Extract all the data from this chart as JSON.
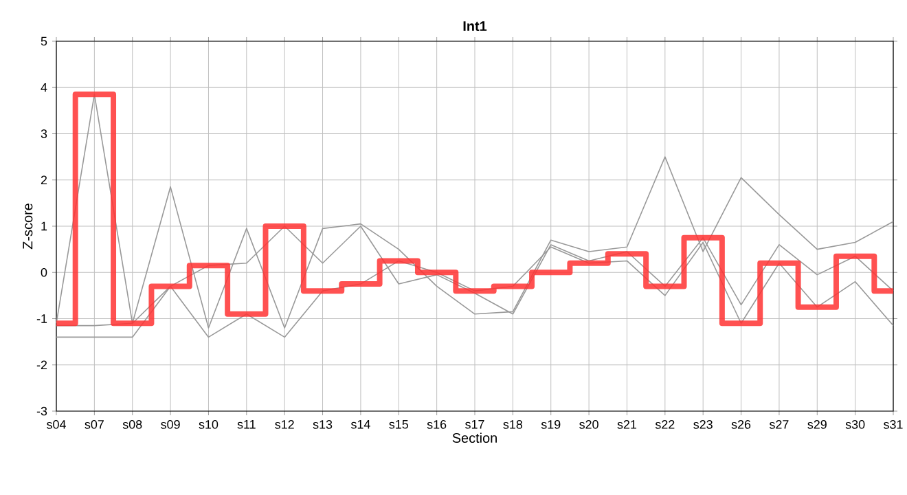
{
  "chart_data": {
    "type": "line",
    "title": "Int1",
    "xlabel": "Section",
    "ylabel": "Z-score",
    "categories": [
      "s04",
      "s07",
      "s08",
      "s09",
      "s10",
      "s11",
      "s12",
      "s13",
      "s14",
      "s15",
      "s16",
      "s17",
      "s18",
      "s19",
      "s20",
      "s21",
      "s22",
      "s23",
      "s26",
      "s27",
      "s29",
      "s30",
      "s31"
    ],
    "series": [
      {
        "color": "#999999",
        "values": [
          -1.1,
          3.85,
          -1.1,
          1.85,
          -1.2,
          0.95,
          -1.2,
          0.95,
          1.05,
          0.5,
          -0.3,
          -0.9,
          -0.85,
          0.7,
          0.45,
          0.55,
          2.5,
          0.45,
          2.05,
          1.25,
          0.5,
          0.65,
          1.1
        ]
      },
      {
        "color": "#999999",
        "values": [
          -1.15,
          -1.15,
          -1.1,
          -0.3,
          0.15,
          0.2,
          1.0,
          0.2,
          1.0,
          -0.25,
          -0.05,
          -0.45,
          -0.9,
          0.6,
          0.25,
          0.45,
          -0.3,
          0.75,
          -0.7,
          0.6,
          -0.05,
          0.35,
          -0.4
        ]
      },
      {
        "color": "#999999",
        "values": [
          -1.4,
          -1.4,
          -1.4,
          -0.3,
          -1.4,
          -0.9,
          -1.4,
          -0.4,
          -0.25,
          0.25,
          0.0,
          -0.4,
          -0.3,
          0.55,
          0.2,
          0.25,
          -0.5,
          0.65,
          -1.1,
          0.2,
          -0.75,
          -0.2,
          -1.15
        ]
      },
      {
        "type": "step",
        "color": "#ff3333",
        "values": [
          -1.1,
          3.85,
          -1.1,
          -0.3,
          0.15,
          -0.9,
          1.0,
          -0.4,
          -0.25,
          0.25,
          0.0,
          -0.4,
          -0.3,
          0.0,
          0.2,
          0.4,
          -0.3,
          0.75,
          -1.1,
          0.2,
          -0.75,
          0.35,
          -0.4
        ]
      }
    ],
    "ylim": [
      -3,
      5
    ],
    "yticks": [
      -3,
      -2,
      -1,
      0,
      1,
      2,
      3,
      4,
      5
    ],
    "grid": true
  }
}
